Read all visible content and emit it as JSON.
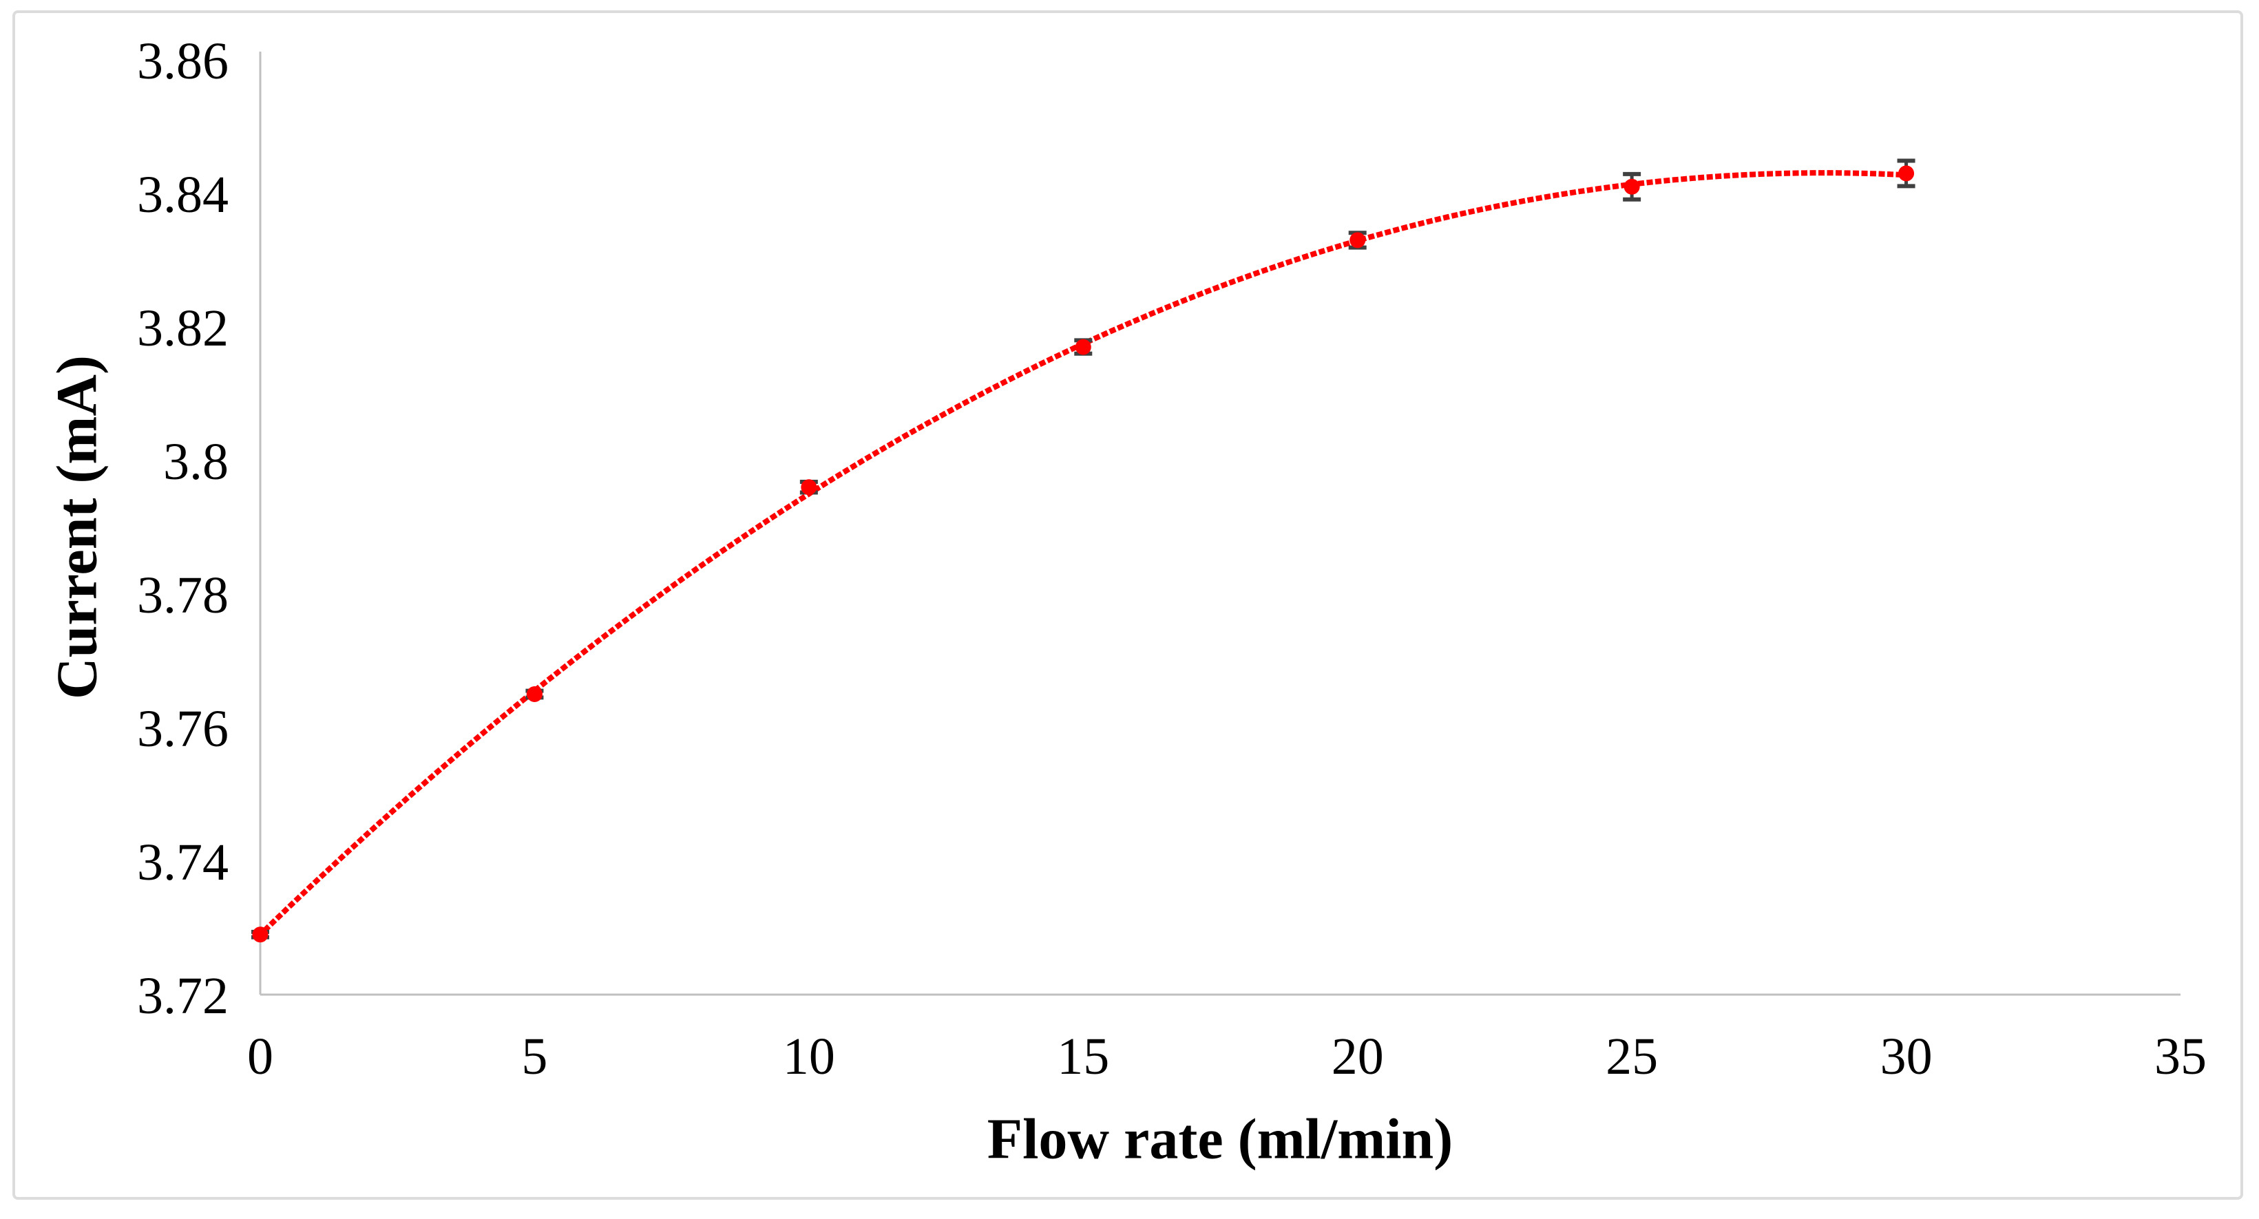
{
  "figure": {
    "border_color": "#dcdcdc",
    "background_color": "#ffffff"
  },
  "chart_data": {
    "type": "scatter",
    "title": "",
    "xlabel": "Flow rate (ml/min)",
    "ylabel": "Current (mA)",
    "x": [
      0,
      5,
      10,
      15,
      20,
      25,
      30
    ],
    "y": [
      3.729,
      3.765,
      3.796,
      3.817,
      3.833,
      3.841,
      3.843
    ],
    "y_err": [
      0.0004,
      0.0005,
      0.0008,
      0.001,
      0.0011,
      0.0019,
      0.0019
    ],
    "x_ticks": [
      0,
      5,
      10,
      15,
      20,
      25,
      30,
      35
    ],
    "y_ticks": [
      3.72,
      3.74,
      3.76,
      3.78,
      3.8,
      3.82,
      3.84,
      3.86
    ],
    "xlim": [
      0,
      35
    ],
    "ylim": [
      3.72,
      3.86
    ],
    "grid": false,
    "legend_position": "none",
    "marker_color": "#ff0000",
    "trendline_style": "dotted",
    "trendline_color": "#ff0000",
    "error_bar_color": "#404040",
    "axis_color": "#c0c0c0"
  }
}
